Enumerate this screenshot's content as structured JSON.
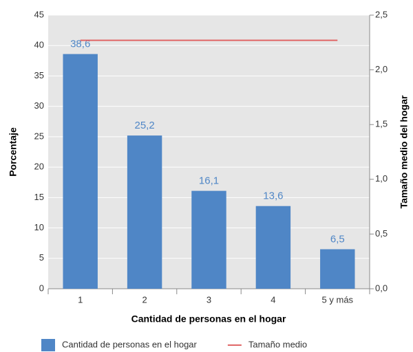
{
  "chart_data": {
    "type": "bar",
    "x_label": "Cantidad de personas en el hogar",
    "y_label": "Porcentaje",
    "y2_label": "Tamaño medio del hogar",
    "categories": [
      "1",
      "2",
      "3",
      "4",
      "5 y más"
    ],
    "series": [
      {
        "name": "Cantidad de personas en el hogar",
        "color": "#4f86c6",
        "type": "bar",
        "values": [
          38.6,
          25.2,
          16.1,
          13.6,
          6.5
        ],
        "value_labels": [
          "38,6",
          "25,2",
          "16,1",
          "13,6",
          "6,5"
        ]
      },
      {
        "name": "Tamaño medio",
        "color": "#e06666",
        "type": "line",
        "axis": "y2",
        "values": [
          2.27,
          2.27,
          2.27,
          2.27,
          2.27
        ]
      }
    ],
    "ylim": [
      0,
      45
    ],
    "yticks": [
      0,
      5,
      10,
      15,
      20,
      25,
      30,
      35,
      40,
      45
    ],
    "y2lim": [
      0,
      2.5
    ],
    "y2ticks": [
      {
        "value": 0,
        "label": "0,0"
      },
      {
        "value": 0.5,
        "label": "0,5"
      },
      {
        "value": 1,
        "label": "1,0"
      },
      {
        "value": 1.5,
        "label": "1,5"
      },
      {
        "value": 2,
        "label": "2,0"
      },
      {
        "value": 2.5,
        "label": "2,5"
      }
    ],
    "grid": true,
    "legend": "bottom"
  }
}
